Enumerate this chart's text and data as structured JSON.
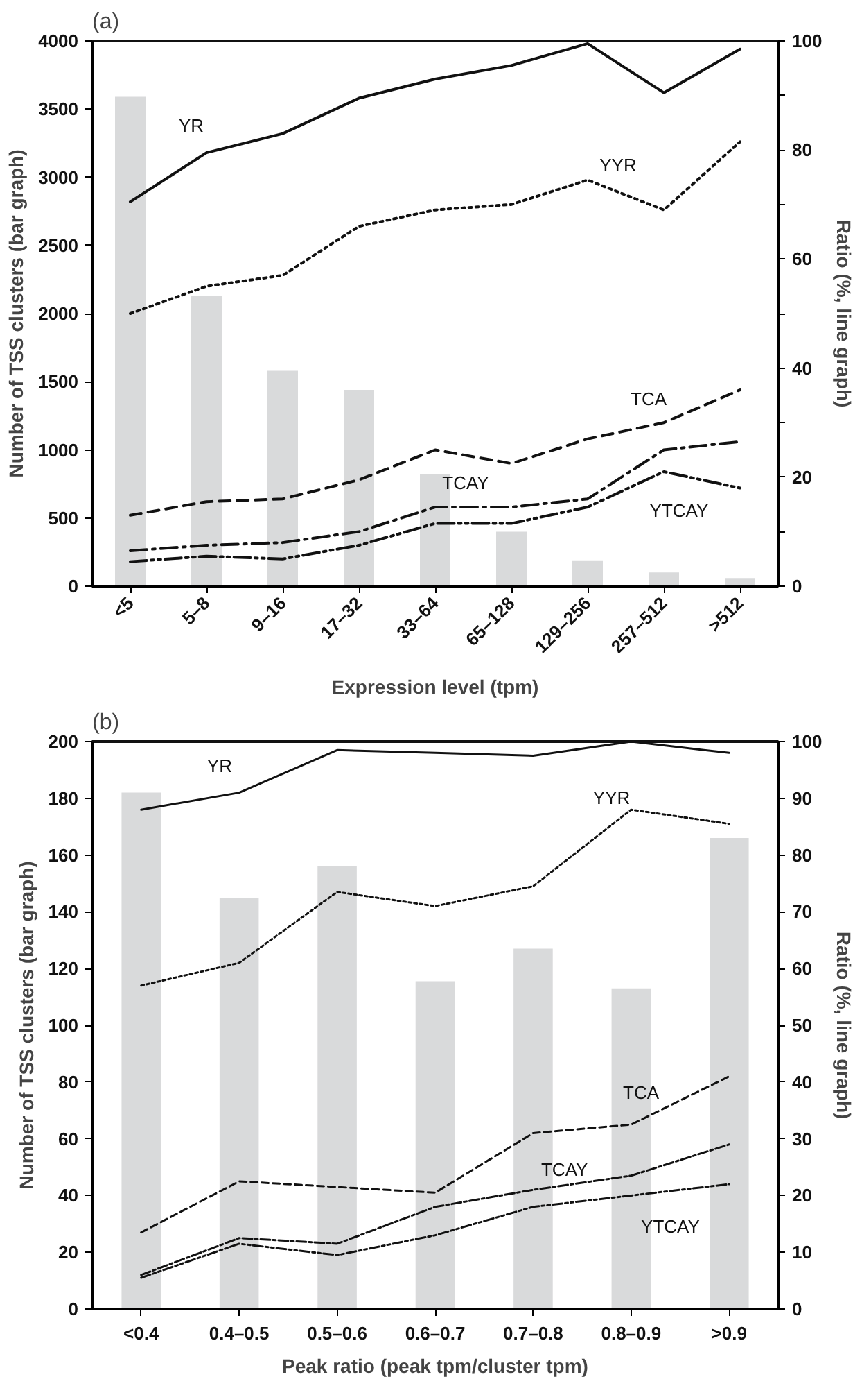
{
  "chart_data": [
    {
      "type": "bar",
      "title": "(a)",
      "xlabel": "Expression level (tpm)",
      "ylabel": "Number of TSS clusters (bar graph)",
      "y2label": "Ratio (%, line graph)",
      "categories": [
        "<5",
        "5–8",
        "9–16",
        "17–32",
        "33–64",
        "65–128",
        "129–256",
        "257–512",
        ">512"
      ],
      "ylim": [
        0,
        4000
      ],
      "yticks": [
        0,
        500,
        1000,
        1500,
        2000,
        2500,
        3000,
        3500,
        4000
      ],
      "y2lim": [
        0,
        100
      ],
      "y2ticks": [
        0,
        {
          "value": 10,
          "label": null
        },
        20,
        {
          "value": 30,
          "label": null
        },
        40,
        {
          "value": 50,
          "label": null
        },
        60,
        {
          "value": 70,
          "label": null
        },
        80,
        {
          "value": 90,
          "label": null
        },
        100
      ],
      "grid": false,
      "series": [
        {
          "color": "#d9dadb",
          "values": [
            3590,
            2130,
            1580,
            1440,
            820,
            400,
            190,
            100,
            60
          ]
        },
        {
          "type": "line",
          "name": "YR",
          "color": "#111111",
          "axis": "y2",
          "line_style": "solid",
          "values": [
            70.5,
            79.5,
            83,
            89.5,
            93,
            95.5,
            99.5,
            90.5,
            98.5
          ]
        },
        {
          "type": "line",
          "name": "YYR",
          "color": "#111111",
          "axis": "y2",
          "line_style": "dotted",
          "values": [
            50,
            55,
            57,
            66,
            69,
            70,
            74.5,
            69,
            81.5
          ]
        },
        {
          "type": "line",
          "name": "TCA",
          "color": "#111111",
          "axis": "y2",
          "line_style": "dashed",
          "values": [
            13,
            15.5,
            16,
            19.5,
            25,
            22.5,
            27,
            30,
            36
          ]
        },
        {
          "type": "line",
          "name": "TCAY",
          "color": "#111111",
          "axis": "y2",
          "line_style": "dashdot",
          "values": [
            6.5,
            7.5,
            8,
            10,
            14.5,
            14.5,
            16,
            25,
            26.5
          ]
        },
        {
          "type": "line",
          "name": "YTCAY",
          "color": "#111111",
          "axis": "y2",
          "line_style": "dashdotdot",
          "values": [
            4.5,
            5.5,
            5,
            7.5,
            11.5,
            11.5,
            14.5,
            21,
            18
          ]
        }
      ]
    },
    {
      "type": "bar",
      "title": "(b)",
      "xlabel": "Peak ratio (peak tpm/cluster tpm)",
      "ylabel": "Number of TSS clusters (bar graph)",
      "y2label": "Ratio (%, line graph)",
      "categories": [
        "<0.4",
        "0.4–0.5",
        "0.5–0.6",
        "0.6–0.7",
        "0.7–0.8",
        "0.8–0.9",
        ">0.9"
      ],
      "ylim": [
        0,
        200
      ],
      "yticks": [
        0,
        20,
        40,
        60,
        80,
        100,
        120,
        140,
        160,
        180,
        200
      ],
      "y2lim": [
        0,
        100
      ],
      "y2ticks": [
        0,
        10,
        20,
        30,
        40,
        50,
        60,
        70,
        80,
        90,
        100
      ],
      "grid": false,
      "series": [
        {
          "color": "#d9dadb",
          "values": [
            182,
            145,
            156,
            115.5,
            127,
            113,
            166
          ]
        },
        {
          "type": "line",
          "name": "YR",
          "color": "#111111",
          "axis": "y2",
          "line_style": "solid",
          "values": [
            88,
            91,
            98.5,
            98,
            97.5,
            100,
            98
          ]
        },
        {
          "type": "line",
          "name": "YYR",
          "color": "#111111",
          "axis": "y2",
          "line_style": "dotted",
          "values": [
            57,
            61,
            73.5,
            71,
            74.5,
            88,
            85.5
          ]
        },
        {
          "type": "line",
          "name": "TCA",
          "color": "#111111",
          "axis": "y2",
          "line_style": "dashed",
          "values": [
            13.5,
            22.5,
            21.5,
            20.5,
            31,
            32.5,
            41
          ]
        },
        {
          "type": "line",
          "name": "TCAY",
          "color": "#111111",
          "axis": "y2",
          "line_style": "dashdot",
          "values": [
            6,
            12.5,
            11.5,
            18,
            21,
            23.5,
            29
          ]
        },
        {
          "type": "line",
          "name": "YTCAY",
          "color": "#111111",
          "axis": "y2",
          "line_style": "dashdotdot",
          "values": [
            5.5,
            11.5,
            9.5,
            13,
            18,
            20,
            22
          ]
        }
      ]
    }
  ]
}
